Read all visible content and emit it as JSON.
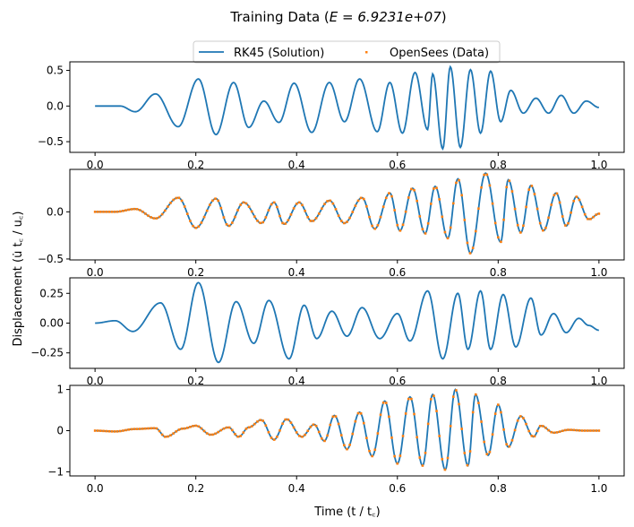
{
  "figure": {
    "title_prefix": "Training Data (",
    "title_math": "E = 6.9231e+07",
    "title_suffix": ")",
    "ylabel": "Displacement (u̇ t꜀ / u꜀)",
    "xlabel": "Time (t / t꜀)",
    "legend": [
      {
        "label": "RK45 (Solution)",
        "style": "line",
        "color": "#1f77b4"
      },
      {
        "label": "OpenSees (Data)",
        "style": "dots",
        "color": "#ff7f0e"
      }
    ],
    "colors": {
      "solution": "#1f77b4",
      "data": "#ff7f0e"
    }
  },
  "chart_data": [
    {
      "type": "line",
      "series": [
        {
          "name": "RK45 (Solution)"
        }
      ],
      "xlim": [
        -0.05,
        1.05
      ],
      "ylim": [
        -0.65,
        0.62
      ],
      "xticks": [
        0.0,
        0.2,
        0.4,
        0.6,
        0.8,
        1.0
      ],
      "xtick_labels": [
        "0.0",
        "0.2",
        "0.4",
        "0.6",
        "0.8",
        "1.0"
      ],
      "yticks": [
        -0.5,
        0.0,
        0.5
      ],
      "ytick_labels": [
        "−0.5",
        "0.0",
        "0.5"
      ],
      "peaks": [
        [
          0.0,
          0.0
        ],
        [
          0.05,
          0.0
        ],
        [
          0.08,
          -0.08
        ],
        [
          0.12,
          0.17
        ],
        [
          0.165,
          -0.29
        ],
        [
          0.205,
          0.38
        ],
        [
          0.24,
          -0.4
        ],
        [
          0.275,
          0.33
        ],
        [
          0.305,
          -0.3
        ],
        [
          0.335,
          0.07
        ],
        [
          0.365,
          -0.23
        ],
        [
          0.395,
          0.32
        ],
        [
          0.43,
          -0.37
        ],
        [
          0.465,
          0.33
        ],
        [
          0.495,
          -0.22
        ],
        [
          0.525,
          0.38
        ],
        [
          0.56,
          -0.36
        ],
        [
          0.585,
          0.33
        ],
        [
          0.61,
          -0.38
        ],
        [
          0.635,
          0.47
        ],
        [
          0.66,
          -0.33
        ],
        [
          0.67,
          0.45
        ],
        [
          0.69,
          -0.6
        ],
        [
          0.705,
          0.55
        ],
        [
          0.725,
          -0.58
        ],
        [
          0.745,
          0.51
        ],
        [
          0.765,
          -0.38
        ],
        [
          0.785,
          0.49
        ],
        [
          0.805,
          -0.22
        ],
        [
          0.825,
          0.22
        ],
        [
          0.85,
          -0.1
        ],
        [
          0.875,
          0.11
        ],
        [
          0.9,
          -0.1
        ],
        [
          0.925,
          0.15
        ],
        [
          0.95,
          -0.1
        ],
        [
          0.975,
          0.07
        ],
        [
          1.0,
          -0.02
        ]
      ]
    },
    {
      "type": "line",
      "series": [
        {
          "name": "RK45 (Solution)"
        },
        {
          "name": "OpenSees (Data)"
        }
      ],
      "xlim": [
        -0.05,
        1.05
      ],
      "ylim": [
        -0.51,
        0.45
      ],
      "xticks": [
        0.0,
        0.2,
        0.4,
        0.6,
        0.8,
        1.0
      ],
      "xtick_labels": [
        "0.0",
        "0.2",
        "0.4",
        "0.6",
        "0.8",
        "1.0"
      ],
      "yticks": [
        -0.5,
        0.0
      ],
      "ytick_labels": [
        "−0.5",
        "0.0"
      ],
      "peaks": [
        [
          0.0,
          0.0
        ],
        [
          0.04,
          0.0
        ],
        [
          0.08,
          0.03
        ],
        [
          0.12,
          -0.07
        ],
        [
          0.165,
          0.15
        ],
        [
          0.2,
          -0.17
        ],
        [
          0.24,
          0.14
        ],
        [
          0.265,
          -0.15
        ],
        [
          0.295,
          0.1
        ],
        [
          0.33,
          -0.12
        ],
        [
          0.355,
          0.1
        ],
        [
          0.375,
          -0.13
        ],
        [
          0.405,
          0.1
        ],
        [
          0.43,
          -0.1
        ],
        [
          0.465,
          0.12
        ],
        [
          0.495,
          -0.12
        ],
        [
          0.53,
          0.15
        ],
        [
          0.555,
          -0.18
        ],
        [
          0.585,
          0.2
        ],
        [
          0.605,
          -0.2
        ],
        [
          0.63,
          0.25
        ],
        [
          0.655,
          -0.23
        ],
        [
          0.675,
          0.27
        ],
        [
          0.7,
          -0.28
        ],
        [
          0.72,
          0.35
        ],
        [
          0.745,
          -0.44
        ],
        [
          0.775,
          0.41
        ],
        [
          0.805,
          -0.32
        ],
        [
          0.82,
          0.34
        ],
        [
          0.845,
          -0.22
        ],
        [
          0.865,
          0.28
        ],
        [
          0.89,
          -0.2
        ],
        [
          0.915,
          0.2
        ],
        [
          0.935,
          -0.15
        ],
        [
          0.955,
          0.16
        ],
        [
          0.98,
          -0.08
        ],
        [
          1.0,
          -0.02
        ]
      ]
    },
    {
      "type": "line",
      "series": [
        {
          "name": "RK45 (Solution)"
        }
      ],
      "xlim": [
        -0.05,
        1.05
      ],
      "ylim": [
        -0.38,
        0.38
      ],
      "xticks": [
        0.0,
        0.2,
        0.4,
        0.6,
        0.8,
        1.0
      ],
      "xtick_labels": [
        "0.0",
        "0.2",
        "0.4",
        "0.6",
        "0.8",
        "1.0"
      ],
      "yticks": [
        -0.25,
        0.0,
        0.25
      ],
      "ytick_labels": [
        "−0.25",
        "0.00",
        "0.25"
      ],
      "peaks": [
        [
          0.0,
          0.0
        ],
        [
          0.04,
          0.02
        ],
        [
          0.075,
          -0.07
        ],
        [
          0.13,
          0.17
        ],
        [
          0.17,
          -0.22
        ],
        [
          0.205,
          0.34
        ],
        [
          0.245,
          -0.33
        ],
        [
          0.28,
          0.18
        ],
        [
          0.315,
          -0.17
        ],
        [
          0.345,
          0.19
        ],
        [
          0.385,
          -0.3
        ],
        [
          0.415,
          0.15
        ],
        [
          0.44,
          -0.13
        ],
        [
          0.47,
          0.1
        ],
        [
          0.5,
          -0.11
        ],
        [
          0.53,
          0.13
        ],
        [
          0.565,
          -0.13
        ],
        [
          0.6,
          0.08
        ],
        [
          0.625,
          -0.15
        ],
        [
          0.66,
          0.27
        ],
        [
          0.69,
          -0.3
        ],
        [
          0.72,
          0.25
        ],
        [
          0.74,
          -0.22
        ],
        [
          0.765,
          0.27
        ],
        [
          0.785,
          -0.22
        ],
        [
          0.81,
          0.24
        ],
        [
          0.835,
          -0.2
        ],
        [
          0.865,
          0.21
        ],
        [
          0.885,
          -0.1
        ],
        [
          0.91,
          0.08
        ],
        [
          0.935,
          -0.08
        ],
        [
          0.96,
          0.04
        ],
        [
          0.98,
          -0.02
        ],
        [
          1.0,
          -0.06
        ]
      ]
    },
    {
      "type": "line",
      "series": [
        {
          "name": "RK45 (Solution)"
        },
        {
          "name": "OpenSees (Data)"
        }
      ],
      "xlim": [
        -0.05,
        1.05
      ],
      "ylim": [
        -1.1,
        1.1
      ],
      "xticks": [
        0.0,
        0.2,
        0.4,
        0.6,
        0.8,
        1.0
      ],
      "xtick_labels": [
        "0.0",
        "0.2",
        "0.4",
        "0.6",
        "0.8",
        "1.0"
      ],
      "yticks": [
        -1,
        0,
        1
      ],
      "ytick_labels": [
        "−1",
        "0",
        "1"
      ],
      "peaks": [
        [
          0.0,
          0.0
        ],
        [
          0.04,
          -0.02
        ],
        [
          0.08,
          0.04
        ],
        [
          0.12,
          0.06
        ],
        [
          0.14,
          -0.15
        ],
        [
          0.175,
          0.05
        ],
        [
          0.2,
          0.12
        ],
        [
          0.23,
          -0.1
        ],
        [
          0.265,
          0.08
        ],
        [
          0.285,
          -0.15
        ],
        [
          0.305,
          0.08
        ],
        [
          0.33,
          0.26
        ],
        [
          0.355,
          -0.22
        ],
        [
          0.38,
          0.28
        ],
        [
          0.41,
          -0.15
        ],
        [
          0.435,
          0.15
        ],
        [
          0.455,
          -0.25
        ],
        [
          0.475,
          0.37
        ],
        [
          0.5,
          -0.45
        ],
        [
          0.525,
          0.45
        ],
        [
          0.55,
          -0.62
        ],
        [
          0.575,
          0.72
        ],
        [
          0.6,
          -0.8
        ],
        [
          0.625,
          0.82
        ],
        [
          0.65,
          -0.85
        ],
        [
          0.67,
          0.88
        ],
        [
          0.695,
          -0.95
        ],
        [
          0.715,
          1.0
        ],
        [
          0.74,
          -0.85
        ],
        [
          0.755,
          0.88
        ],
        [
          0.78,
          -0.6
        ],
        [
          0.8,
          0.63
        ],
        [
          0.82,
          -0.4
        ],
        [
          0.845,
          0.35
        ],
        [
          0.87,
          -0.15
        ],
        [
          0.885,
          0.12
        ],
        [
          0.91,
          -0.05
        ],
        [
          0.94,
          0.02
        ],
        [
          0.97,
          0.0
        ],
        [
          1.0,
          0.0
        ]
      ]
    }
  ]
}
